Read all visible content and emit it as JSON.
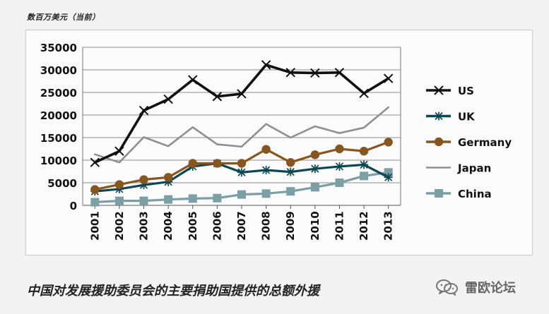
{
  "page_note": "数百万美元（当前）",
  "caption": "中国对发展援助委员会的主要捐助国提供的总额外援",
  "watermark": {
    "text": "雷欧论坛",
    "icon": "wechat-icon"
  },
  "colors": {
    "background": "#f3f3f3",
    "frame_border": "#cfcfcf",
    "grid": "#8c8c8c",
    "axis_text": "#111111",
    "US": "#111111",
    "UK": "#0d4752",
    "Germany": "#87561f",
    "Japan": "#8f8f8f",
    "China": "#7b9fa4"
  },
  "chart_data": {
    "type": "line",
    "title": "",
    "xlabel": "",
    "ylabel": "",
    "categories": [
      "2001",
      "2002",
      "2003",
      "2004",
      "2005",
      "2006",
      "2007",
      "2008",
      "2009",
      "2010",
      "2011",
      "2012",
      "2013"
    ],
    "ylim": [
      0,
      35000
    ],
    "yticks": [
      "0",
      "5000",
      "10000",
      "15000",
      "20000",
      "25000",
      "30000",
      "35000"
    ],
    "grid": true,
    "legend_position": "right",
    "series": [
      {
        "name": "US",
        "marker": "x",
        "values": [
          9500,
          12000,
          21000,
          23500,
          27800,
          24100,
          24700,
          31100,
          29400,
          29300,
          29400,
          24800,
          28100
        ]
      },
      {
        "name": "UK",
        "marker": "star",
        "values": [
          3100,
          3600,
          4500,
          5200,
          8600,
          9300,
          7300,
          7800,
          7400,
          8100,
          8600,
          9000,
          6200
        ]
      },
      {
        "name": "Germany",
        "marker": "circle",
        "values": [
          3500,
          4600,
          5700,
          6200,
          9300,
          9300,
          9300,
          12400,
          9500,
          11200,
          12500,
          12000,
          14000
        ]
      },
      {
        "name": "Japan",
        "marker": "none",
        "values": [
          11300,
          9500,
          15100,
          13100,
          17300,
          13500,
          13000,
          18000,
          15000,
          17500,
          16000,
          17200,
          21700
        ]
      },
      {
        "name": "China",
        "marker": "square",
        "values": [
          700,
          1000,
          1000,
          1300,
          1500,
          1600,
          2400,
          2600,
          3100,
          4000,
          5000,
          6500,
          7300
        ]
      }
    ]
  }
}
